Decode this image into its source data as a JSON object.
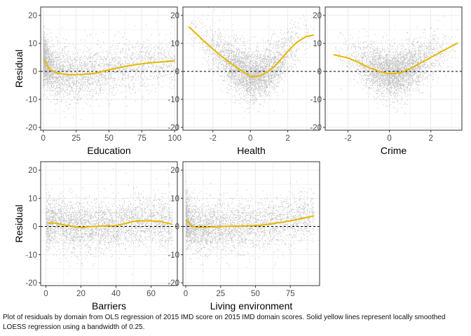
{
  "caption": "Plot of residuals by domain from OLS regression of 2015 IMD score on 2015 IMD domain scores. Solid yellow lines represent locally smoothed LOESS regression using a bandwidth of 0.25.",
  "colors": {
    "points": "#8c8c8c",
    "loess": "#e6b800",
    "zero_line": "#000000",
    "panel_border": "#333333",
    "grid": "#ebebeb"
  },
  "chart_data": [
    {
      "type": "scatter",
      "xlabel": "Education",
      "ylabel": "Residual",
      "xlim": [
        -2,
        102
      ],
      "ylim": [
        -21,
        23
      ],
      "x_ticks": [
        0,
        25,
        50,
        75,
        100
      ],
      "y_ticks": [
        -20,
        -10,
        0,
        10,
        20
      ],
      "reference_line_y": 0,
      "scatter": {
        "x_range": [
          0,
          100
        ],
        "x_skew": 0.45,
        "noise_sd": 4.5
      },
      "loess": {
        "x": [
          0,
          5,
          10,
          20,
          30,
          40,
          50,
          60,
          70,
          80,
          90,
          100
        ],
        "y": [
          4.5,
          0.8,
          -0.6,
          -1.2,
          -1.1,
          -0.6,
          0.6,
          1.6,
          2.4,
          3.0,
          3.4,
          3.7
        ]
      }
    },
    {
      "type": "scatter",
      "xlabel": "Health",
      "ylabel": "",
      "xlim": [
        -3.6,
        3.7
      ],
      "ylim": [
        -21,
        23
      ],
      "x_ticks": [
        -2,
        0,
        2
      ],
      "y_ticks": [
        -20,
        -10,
        0,
        10,
        20
      ],
      "reference_line_y": 0,
      "scatter": {
        "x_range": [
          -3.3,
          3.4
        ],
        "x_skew": 1.0,
        "noise_sd": 4.5
      },
      "loess": {
        "x": [
          -3.3,
          -2.5,
          -2,
          -1.5,
          -1,
          -0.5,
          0,
          0.5,
          1,
          1.5,
          2,
          2.5,
          3,
          3.4
        ],
        "y": [
          16.0,
          11.0,
          8.0,
          5.2,
          2.6,
          0.4,
          -1.8,
          -1.7,
          0.2,
          3.2,
          7.2,
          10.5,
          12.5,
          13.0
        ]
      }
    },
    {
      "type": "scatter",
      "xlabel": "Crime",
      "ylabel": "",
      "xlim": [
        -3.1,
        3.5
      ],
      "ylim": [
        -21,
        23
      ],
      "x_ticks": [
        -2,
        0,
        2
      ],
      "y_ticks": [
        -20,
        -10,
        0,
        10,
        20
      ],
      "reference_line_y": 0,
      "scatter": {
        "x_range": [
          -2.8,
          3.3
        ],
        "x_skew": 1.0,
        "noise_sd": 4.3
      },
      "loess": {
        "x": [
          -2.7,
          -2,
          -1.5,
          -1,
          -0.5,
          0,
          0.5,
          1,
          1.5,
          2,
          2.5,
          3.3
        ],
        "y": [
          6.0,
          4.8,
          3.2,
          1.4,
          0.0,
          -0.8,
          -0.6,
          1.0,
          3.0,
          5.0,
          7.0,
          10.2
        ]
      }
    },
    {
      "type": "scatter",
      "xlabel": "Barriers",
      "ylabel": "Residual",
      "xlim": [
        -3,
        75
      ],
      "ylim": [
        -21,
        23
      ],
      "x_ticks": [
        0,
        20,
        40,
        60
      ],
      "y_ticks": [
        -20,
        -10,
        0,
        10,
        20
      ],
      "reference_line_y": 0,
      "scatter": {
        "x_range": [
          0,
          72
        ],
        "x_skew": 0.8,
        "noise_sd": 4.5
      },
      "loess": {
        "x": [
          1,
          5,
          10,
          15,
          20,
          25,
          30,
          35,
          40,
          45,
          50,
          55,
          60,
          65,
          72
        ],
        "y": [
          1.2,
          1.2,
          0.6,
          0.1,
          -0.4,
          -0.1,
          0.1,
          0.2,
          0.3,
          1.0,
          1.8,
          2.0,
          2.0,
          1.8,
          0.8
        ]
      }
    },
    {
      "type": "scatter",
      "xlabel": "Living environment",
      "ylabel": "",
      "xlim": [
        -2,
        96
      ],
      "ylim": [
        -21,
        23
      ],
      "x_ticks": [
        0,
        25,
        50,
        75
      ],
      "y_ticks": [
        -20,
        -10,
        0,
        10,
        20
      ],
      "reference_line_y": 0,
      "scatter": {
        "x_range": [
          0,
          92
        ],
        "x_skew": 0.6,
        "noise_sd": 4.5
      },
      "loess": {
        "x": [
          0,
          4,
          8,
          15,
          25,
          35,
          45,
          55,
          65,
          75,
          85,
          92
        ],
        "y": [
          2.5,
          0.3,
          -0.4,
          -0.3,
          0.0,
          0.1,
          0.2,
          0.5,
          1.2,
          2.0,
          3.0,
          3.8
        ]
      }
    }
  ]
}
